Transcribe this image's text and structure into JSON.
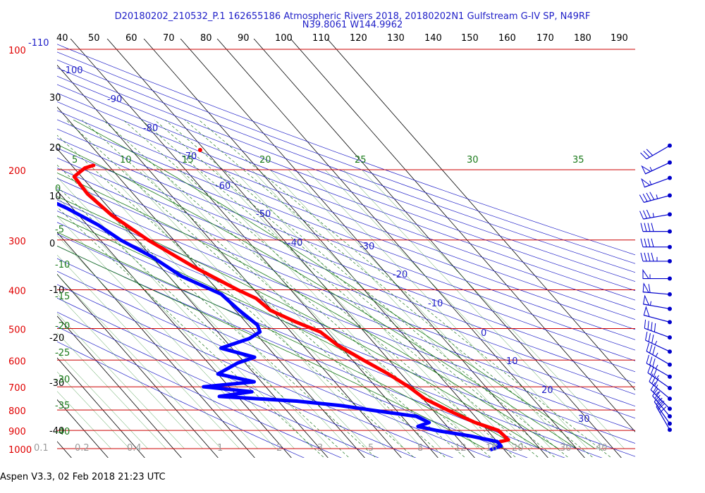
{
  "header": {
    "title": "D20180202_210532_P.1 162655186 Atmospheric Rivers 2018, 20180202N1 Gulfstream G-IV SP, N49RF",
    "subtitle": "N39.8061 W144.9962"
  },
  "footer": "Aspen V3.3, 02 Feb 2018  21:23 UTC",
  "colors": {
    "isobar": "#cc0000",
    "pressure_label": "#e00000",
    "isotherm": "#000000",
    "dry_adiabat": "#2020c8",
    "mixing_ratio": "#006400",
    "moist_adiabat": "#1a7a1a",
    "temperature_profile": "#ff0000",
    "dewpoint_profile": "#0000ff",
    "wind_barb": "#0000cc"
  },
  "chart_data": {
    "type": "skew-t log-p",
    "pressure_levels_hPa": [
      100,
      200,
      300,
      400,
      500,
      600,
      700,
      800,
      900,
      1000
    ],
    "pressure_range_hPa": [
      100,
      1000
    ],
    "temperature_ticks_F": [
      -110,
      -100,
      -90,
      -80,
      -70,
      -60,
      -50,
      -40,
      -30,
      -20,
      -10,
      0,
      10,
      20,
      30
    ],
    "temperature_ticks_C_left": [
      40,
      30,
      20,
      10,
      0,
      -10,
      -20,
      -30,
      -40
    ],
    "top_scale_ticks": [
      -110,
      40,
      50,
      60,
      70,
      80,
      90,
      100,
      110,
      120,
      130,
      140,
      150,
      160,
      170,
      180,
      190
    ],
    "potential_temperature_ticks": [
      5,
      10,
      15,
      20,
      25,
      30,
      35
    ],
    "mixing_ratio_ticks": [
      0,
      -5,
      -10,
      -15,
      -20,
      -25,
      -30,
      -35,
      -40
    ],
    "bottom_scale_ticks": [
      "0.1",
      "0.2",
      "0.4",
      "1",
      "2",
      "3",
      "5",
      "8",
      "12",
      "16",
      "20",
      "30",
      "40"
    ],
    "temperature_profile": [
      [
        195,
        -34.0
      ],
      [
        198,
        -37.0
      ],
      [
        208,
        -42.0
      ],
      [
        230,
        -42.5
      ],
      [
        260,
        -41.0
      ],
      [
        300,
        -37.0
      ],
      [
        350,
        -31.0
      ],
      [
        400,
        -24.5
      ],
      [
        420,
        -21.5
      ],
      [
        450,
        -20.5
      ],
      [
        480,
        -16.5
      ],
      [
        510,
        -12.0
      ],
      [
        550,
        -10.5
      ],
      [
        600,
        -7.0
      ],
      [
        650,
        -3.5
      ],
      [
        700,
        -1.0
      ],
      [
        750,
        0.5
      ],
      [
        800,
        4.0
      ],
      [
        860,
        8.5
      ],
      [
        900,
        13.0
      ],
      [
        950,
        13.5
      ],
      [
        958,
        11.5
      ],
      [
        960,
        10.8
      ]
    ],
    "dewpoint_profile": [
      [
        225,
        -58.0
      ],
      [
        250,
        -51.5
      ],
      [
        275,
        -47.0
      ],
      [
        300,
        -44.5
      ],
      [
        330,
        -40.0
      ],
      [
        370,
        -36.5
      ],
      [
        410,
        -30.0
      ],
      [
        450,
        -29.0
      ],
      [
        490,
        -27.5
      ],
      [
        510,
        -28.5
      ],
      [
        530,
        -33.0
      ],
      [
        560,
        -43.0
      ],
      [
        590,
        -36.0
      ],
      [
        610,
        -42.0
      ],
      [
        650,
        -50.0
      ],
      [
        680,
        -42.0
      ],
      [
        700,
        -57.0
      ],
      [
        720,
        -45.0
      ],
      [
        740,
        -55.0
      ],
      [
        760,
        -35.0
      ],
      [
        780,
        -24.0
      ],
      [
        800,
        -17.0
      ],
      [
        830,
        -6.0
      ],
      [
        860,
        -4.0
      ],
      [
        880,
        -8.0
      ],
      [
        900,
        -4.0
      ],
      [
        930,
        4.0
      ],
      [
        960,
        10.0
      ],
      [
        985,
        10.0
      ],
      [
        1005,
        6.5
      ]
    ],
    "isolated_point": [
      200,
      -6.0
    ],
    "wind_barbs": [
      {
        "p": 195,
        "dir": 240,
        "spd": 30
      },
      {
        "p": 215,
        "dir": 245,
        "spd": 55
      },
      {
        "p": 235,
        "dir": 250,
        "spd": 55
      },
      {
        "p": 260,
        "dir": 255,
        "spd": 45
      },
      {
        "p": 290,
        "dir": 260,
        "spd": 35
      },
      {
        "p": 320,
        "dir": 270,
        "spd": 40
      },
      {
        "p": 350,
        "dir": 270,
        "spd": 40
      },
      {
        "p": 380,
        "dir": 270,
        "spd": 45
      },
      {
        "p": 420,
        "dir": 270,
        "spd": 55
      },
      {
        "p": 460,
        "dir": 275,
        "spd": 60
      },
      {
        "p": 500,
        "dir": 280,
        "spd": 55
      },
      {
        "p": 540,
        "dir": 285,
        "spd": 50
      },
      {
        "p": 590,
        "dir": 290,
        "spd": 40
      },
      {
        "p": 640,
        "dir": 295,
        "spd": 35
      },
      {
        "p": 690,
        "dir": 300,
        "spd": 35
      },
      {
        "p": 740,
        "dir": 300,
        "spd": 35
      },
      {
        "p": 790,
        "dir": 305,
        "spd": 35
      },
      {
        "p": 840,
        "dir": 310,
        "spd": 30
      },
      {
        "p": 890,
        "dir": 315,
        "spd": 25
      },
      {
        "p": 930,
        "dir": 320,
        "spd": 25
      },
      {
        "p": 970,
        "dir": 325,
        "spd": 30
      },
      {
        "p": 1005,
        "dir": 330,
        "spd": 30
      }
    ]
  }
}
